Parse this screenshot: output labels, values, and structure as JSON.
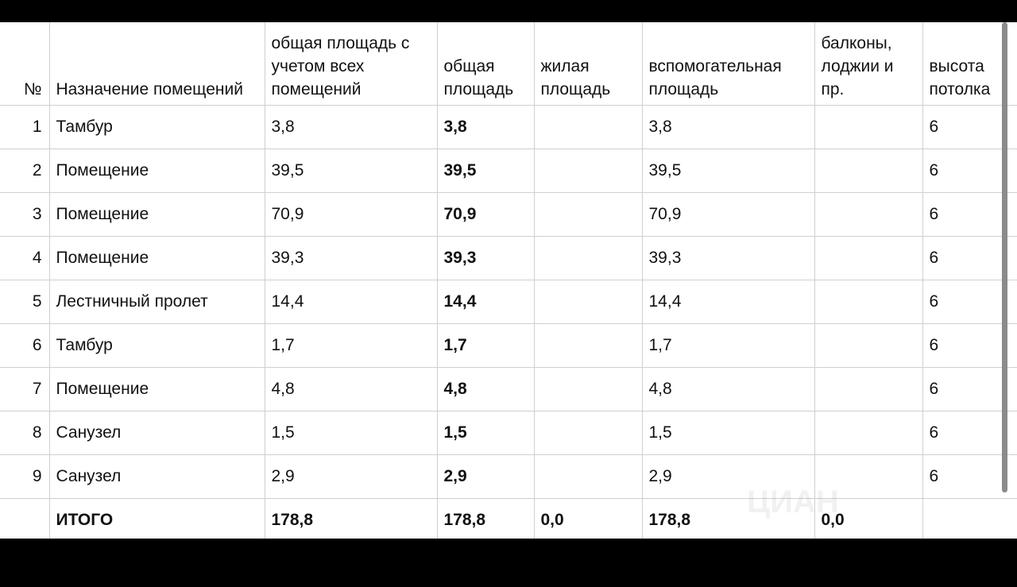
{
  "table": {
    "headers": {
      "num": "№",
      "purpose": "Назначение помещений",
      "total_all": "общая площадь с учетом всех помещений",
      "total": "общая площадь",
      "living": "жилая площадь",
      "auxiliary": "вспомогательная площадь",
      "balconies": "балконы, лоджии и пр.",
      "height": "высота потолка"
    },
    "rows": [
      {
        "num": "1",
        "purpose": "Тамбур",
        "total_all": "3,8",
        "total": "3,8",
        "living": "",
        "auxiliary": "3,8",
        "balconies": "",
        "height": "6"
      },
      {
        "num": "2",
        "purpose": "Помещение",
        "total_all": "39,5",
        "total": "39,5",
        "living": "",
        "auxiliary": "39,5",
        "balconies": "",
        "height": "6"
      },
      {
        "num": "3",
        "purpose": "Помещение",
        "total_all": "70,9",
        "total": "70,9",
        "living": "",
        "auxiliary": "70,9",
        "balconies": "",
        "height": "6"
      },
      {
        "num": "4",
        "purpose": "Помещение",
        "total_all": "39,3",
        "total": "39,3",
        "living": "",
        "auxiliary": "39,3",
        "balconies": "",
        "height": "6"
      },
      {
        "num": "5",
        "purpose": "Лестничный пролет",
        "total_all": "14,4",
        "total": "14,4",
        "living": "",
        "auxiliary": "14,4",
        "balconies": "",
        "height": "6"
      },
      {
        "num": "6",
        "purpose": "Тамбур",
        "total_all": "1,7",
        "total": "1,7",
        "living": "",
        "auxiliary": "1,7",
        "balconies": "",
        "height": "6"
      },
      {
        "num": "7",
        "purpose": "Помещение",
        "total_all": "4,8",
        "total": "4,8",
        "living": "",
        "auxiliary": "4,8",
        "balconies": "",
        "height": "6"
      },
      {
        "num": "8",
        "purpose": "Санузел",
        "total_all": "1,5",
        "total": "1,5",
        "living": "",
        "auxiliary": "1,5",
        "balconies": "",
        "height": "6"
      },
      {
        "num": "9",
        "purpose": "Санузел",
        "total_all": "2,9",
        "total": "2,9",
        "living": "",
        "auxiliary": "2,9",
        "balconies": "",
        "height": "6"
      }
    ],
    "totals": {
      "num": "",
      "purpose": "ИТОГО",
      "total_all": "178,8",
      "total": "178,8",
      "living": "0,0",
      "auxiliary": "178,8",
      "balconies": "0,0",
      "height": ""
    }
  },
  "watermark": {
    "text": "ЦИАН"
  }
}
